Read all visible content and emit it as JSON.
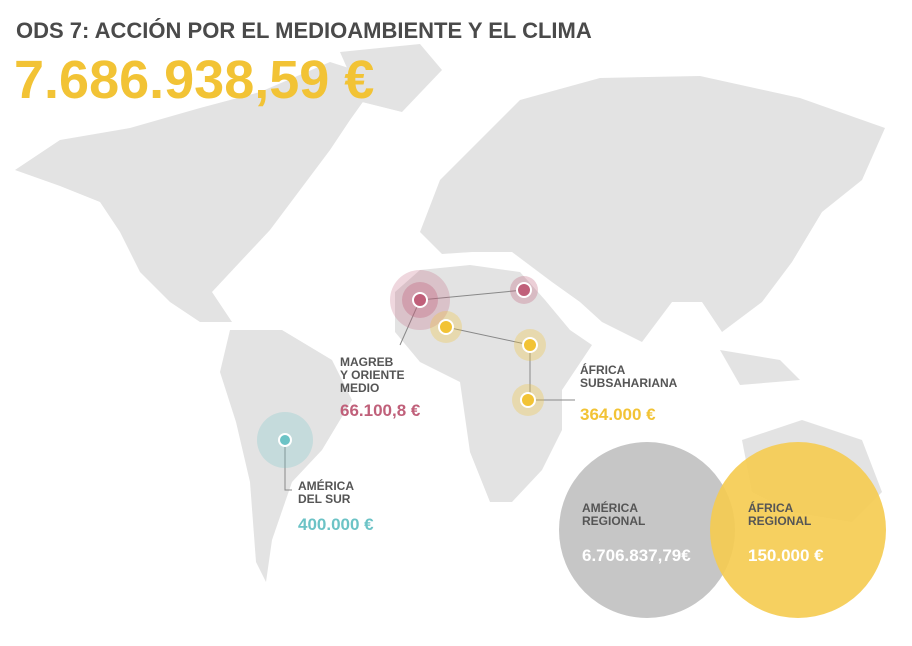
{
  "header": {
    "title": "ODS 7: ACCIÓN POR EL MEDIOAMBIENTE Y EL CLIMA",
    "total": "7.686.938,59 €"
  },
  "regions": [
    {
      "label_lines": [
        "MAGREB",
        "Y ORIENTE",
        "MEDIO"
      ],
      "amount": "66.100,8 €"
    },
    {
      "label_lines": [
        "ÁFRICA",
        "SUBSAHARIANA"
      ],
      "amount": "364.000 €"
    },
    {
      "label_lines": [
        "AMÉRICA",
        "DEL SUR"
      ],
      "amount": "400.000 €"
    },
    {
      "label_lines": [
        "AMÉRICA",
        "REGIONAL"
      ],
      "amount": "6.706.837,79€"
    },
    {
      "label_lines": [
        "ÁFRICA",
        "REGIONAL"
      ],
      "amount": "150.000 €"
    }
  ]
}
